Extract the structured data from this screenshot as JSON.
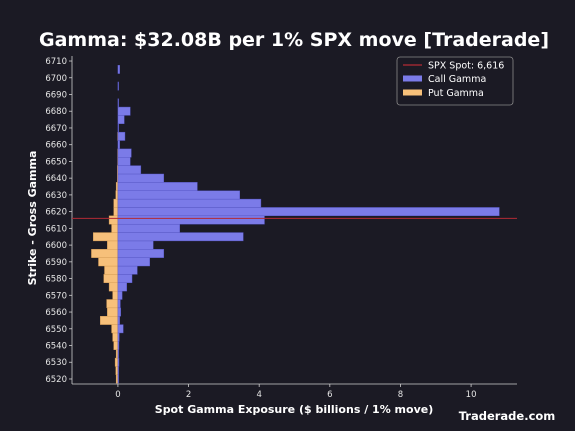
{
  "colors": {
    "background": "#1b1a24",
    "call": "#7b7be8",
    "put": "#f7c07a",
    "spot": "#b22a34",
    "axis": "#cfcfcf"
  },
  "watermark": "Traderade.com",
  "chart_data": {
    "type": "bar",
    "orientation": "horizontal",
    "title": "Gamma: $32.08B per 1% SPX move [Traderade]",
    "xlabel": "Spot Gamma Exposure ($ billions / 1% move)",
    "ylabel": "Strike - Gross Gamma",
    "xlim": [
      -1.3,
      11.3
    ],
    "ylim": [
      6517,
      6713
    ],
    "xticks": [
      0,
      2,
      4,
      6,
      8,
      10
    ],
    "yticks": [
      6520,
      6530,
      6540,
      6550,
      6560,
      6570,
      6580,
      6590,
      6600,
      6610,
      6620,
      6630,
      6640,
      6650,
      6660,
      6670,
      6680,
      6690,
      6700,
      6710
    ],
    "spot": 6616,
    "legend": {
      "position": "top-right",
      "items": [
        "SPX Spot: 6,616",
        "Call Gamma",
        "Put Gamma"
      ]
    },
    "strikes": [
      6520,
      6525,
      6530,
      6535,
      6540,
      6545,
      6550,
      6555,
      6560,
      6565,
      6570,
      6575,
      6580,
      6585,
      6590,
      6595,
      6600,
      6605,
      6610,
      6615,
      6620,
      6625,
      6630,
      6635,
      6640,
      6645,
      6650,
      6655,
      6660,
      6665,
      6670,
      6675,
      6680,
      6685,
      6690,
      6695,
      6700,
      6705,
      6710
    ],
    "series": [
      {
        "name": "Call Gamma",
        "values": [
          0.02,
          0.02,
          0.03,
          0.02,
          0.03,
          0.04,
          0.15,
          0.05,
          0.08,
          0.07,
          0.12,
          0.25,
          0.4,
          0.55,
          0.9,
          1.3,
          1.0,
          3.55,
          1.75,
          4.15,
          10.8,
          4.05,
          3.45,
          2.25,
          1.3,
          0.65,
          0.35,
          0.38,
          0.05,
          0.2,
          0.02,
          0.18,
          0.35,
          0.02,
          0,
          0.02,
          0,
          0.05,
          0
        ]
      },
      {
        "name": "Put Gamma",
        "values": [
          -0.05,
          -0.06,
          -0.08,
          -0.05,
          -0.12,
          -0.15,
          -0.18,
          -0.5,
          -0.3,
          -0.32,
          -0.15,
          -0.25,
          -0.4,
          -0.38,
          -0.55,
          -0.75,
          -0.3,
          -0.7,
          -0.18,
          -0.25,
          -0.12,
          -0.12,
          -0.06,
          -0.05,
          -0.02,
          -0.02,
          -0.01,
          -0.01,
          0,
          -0.01,
          0,
          0,
          0,
          0,
          0,
          0,
          0,
          0,
          0
        ]
      }
    ]
  }
}
